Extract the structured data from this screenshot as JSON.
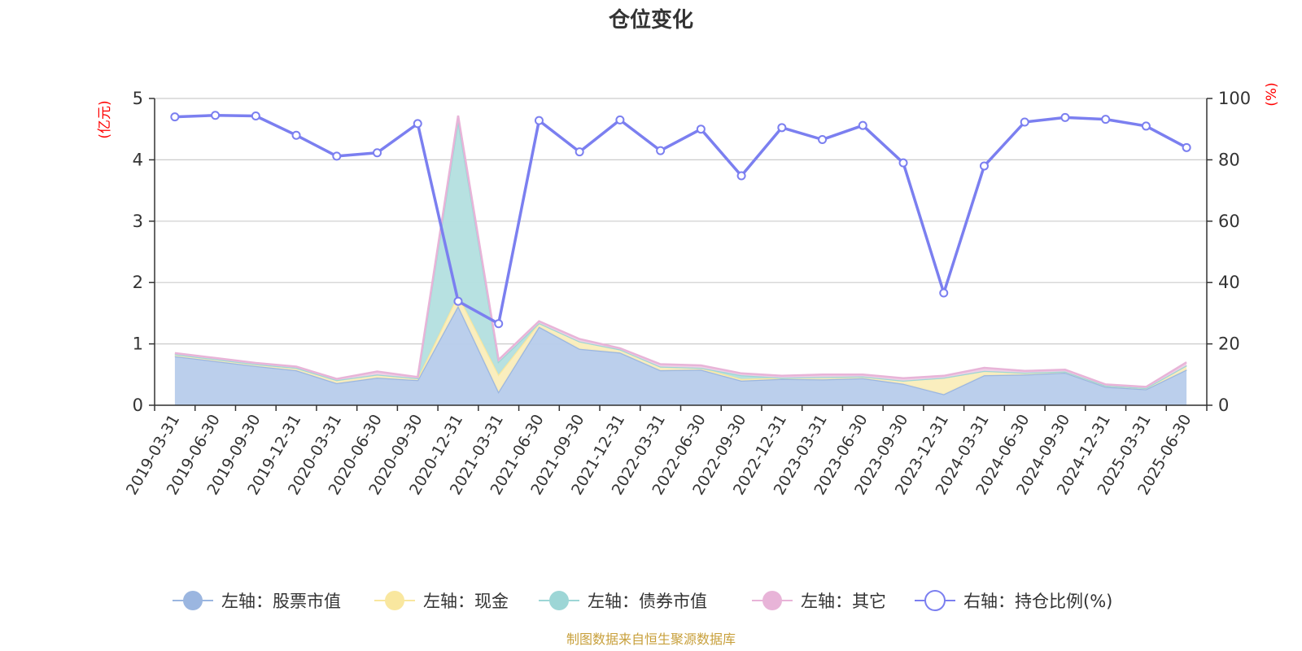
{
  "chart_data": {
    "type": "area",
    "title": "仓位变化",
    "y_left": {
      "label": "(亿元)",
      "min": 0,
      "max": 5,
      "ticks": [
        "0",
        "1",
        "2",
        "3",
        "4",
        "5"
      ]
    },
    "y_right": {
      "label": "(%)",
      "min": 0,
      "max": 100,
      "ticks": [
        "0",
        "20",
        "40",
        "60",
        "80",
        "100"
      ]
    },
    "grid": true,
    "legend_position": "bottom",
    "categories": [
      "2019-03-31",
      "2019-06-30",
      "2019-09-30",
      "2019-12-31",
      "2020-03-31",
      "2020-06-30",
      "2020-09-30",
      "2020-12-31",
      "2021-03-31",
      "2021-06-30",
      "2021-09-30",
      "2021-12-31",
      "2022-03-31",
      "2022-06-30",
      "2022-09-30",
      "2022-12-31",
      "2023-03-31",
      "2023-06-30",
      "2023-09-30",
      "2023-12-31",
      "2024-03-31",
      "2024-06-30",
      "2024-09-30",
      "2024-12-31",
      "2025-03-31",
      "2025-06-30"
    ],
    "series": [
      {
        "name": "左轴：股票市值",
        "axis": "left",
        "color": "#9bb6e0",
        "fill": "#b7cceb",
        "values": [
          0.8,
          0.72,
          0.64,
          0.57,
          0.36,
          0.45,
          0.41,
          1.62,
          0.22,
          1.28,
          0.92,
          0.86,
          0.57,
          0.58,
          0.4,
          0.43,
          0.42,
          0.44,
          0.35,
          0.18,
          0.49,
          0.5,
          0.53,
          0.3,
          0.26,
          0.58
        ]
      },
      {
        "name": "左轴：现金",
        "axis": "left",
        "color": "#f9e79f",
        "fill": "#faedbb",
        "values": [
          0.03,
          0.03,
          0.03,
          0.04,
          0.05,
          0.05,
          0.03,
          0.18,
          0.28,
          0.06,
          0.12,
          0.05,
          0.06,
          0.03,
          0.03,
          0.02,
          0.04,
          0.03,
          0.05,
          0.27,
          0.07,
          0.03,
          0.02,
          0.02,
          0.02,
          0.07
        ]
      },
      {
        "name": "左轴：债券市值",
        "axis": "left",
        "color": "#9dd6d6",
        "fill": "#b3dfdf",
        "values": [
          0,
          0,
          0,
          0,
          0,
          0,
          0,
          2.85,
          0.21,
          0,
          0,
          0,
          0,
          0,
          0.06,
          0,
          0,
          0,
          0,
          0,
          0,
          0,
          0,
          0,
          0,
          0
        ]
      },
      {
        "name": "左轴：其它",
        "axis": "left",
        "color": "#e8b4d8",
        "fill": "#f0d0e6",
        "values": [
          0.02,
          0.02,
          0.02,
          0.02,
          0.02,
          0.05,
          0.02,
          0.07,
          0.03,
          0.03,
          0.04,
          0.02,
          0.04,
          0.04,
          0.03,
          0.03,
          0.04,
          0.03,
          0.04,
          0.03,
          0.05,
          0.03,
          0.03,
          0.02,
          0.02,
          0.05
        ]
      },
      {
        "name": "右轴：持仓比例(%)",
        "axis": "right",
        "color": "#7b7ff0",
        "values": [
          94.0,
          94.5,
          94.3,
          88.0,
          81.2,
          82.3,
          91.8,
          33.9,
          26.6,
          92.8,
          82.6,
          93.0,
          83.0,
          90.0,
          74.8,
          90.5,
          86.6,
          91.2,
          79.0,
          36.6,
          78.0,
          92.3,
          93.8,
          93.2,
          91.0,
          84.0
        ]
      }
    ],
    "source_note": "制图数据来自恒生聚源数据库"
  }
}
